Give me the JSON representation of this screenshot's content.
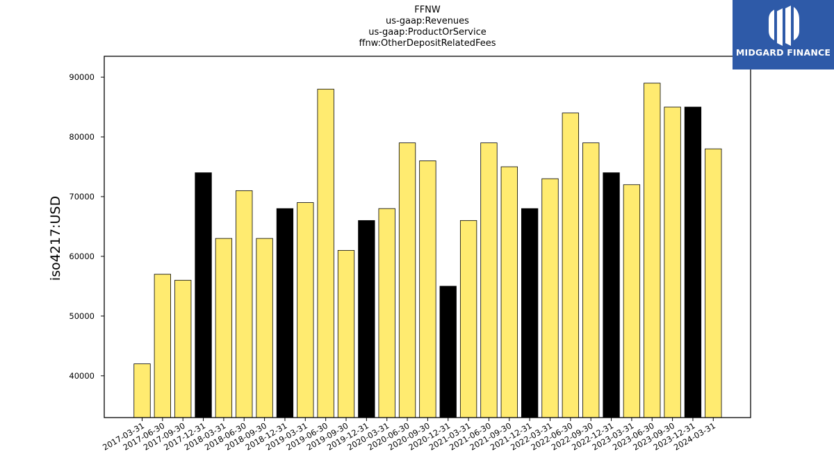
{
  "brand": {
    "name": "MIDGARD FINANCE",
    "colors": {
      "background": "#2e5aa8",
      "foreground": "#ffffff"
    }
  },
  "chart_data": {
    "type": "bar",
    "title_lines": [
      "FFNW",
      "us-gaap:Revenues",
      "us-gaap:ProductOrService",
      "ffnw:OtherDepositRelatedFees"
    ],
    "ylabel": "iso4217:USD",
    "xlabel": "",
    "ylim": [
      33000,
      93500
    ],
    "yticks": [
      40000,
      50000,
      60000,
      70000,
      80000,
      90000
    ],
    "grid": false,
    "legend": "none",
    "colors": {
      "quarter": "#ffeb70",
      "year_end": "#000000",
      "edge": "#000000"
    },
    "categories": [
      "2017-03-31",
      "2017-06-30",
      "2017-09-30",
      "2017-12-31",
      "2018-03-31",
      "2018-06-30",
      "2018-09-30",
      "2018-12-31",
      "2019-03-31",
      "2019-06-30",
      "2019-09-30",
      "2019-12-31",
      "2020-03-31",
      "2020-06-30",
      "2020-09-30",
      "2020-12-31",
      "2021-03-31",
      "2021-06-30",
      "2021-09-30",
      "2021-12-31",
      "2022-03-31",
      "2022-06-30",
      "2022-09-30",
      "2022-12-31",
      "2023-03-31",
      "2023-06-30",
      "2023-09-30",
      "2023-12-31",
      "2024-03-31"
    ],
    "values": [
      42000,
      57000,
      56000,
      74000,
      63000,
      71000,
      63000,
      68000,
      69000,
      88000,
      61000,
      66000,
      68000,
      79000,
      76000,
      55000,
      66000,
      79000,
      75000,
      68000,
      73000,
      84000,
      79000,
      74000,
      72000,
      89000,
      85000,
      85000,
      78000
    ]
  }
}
